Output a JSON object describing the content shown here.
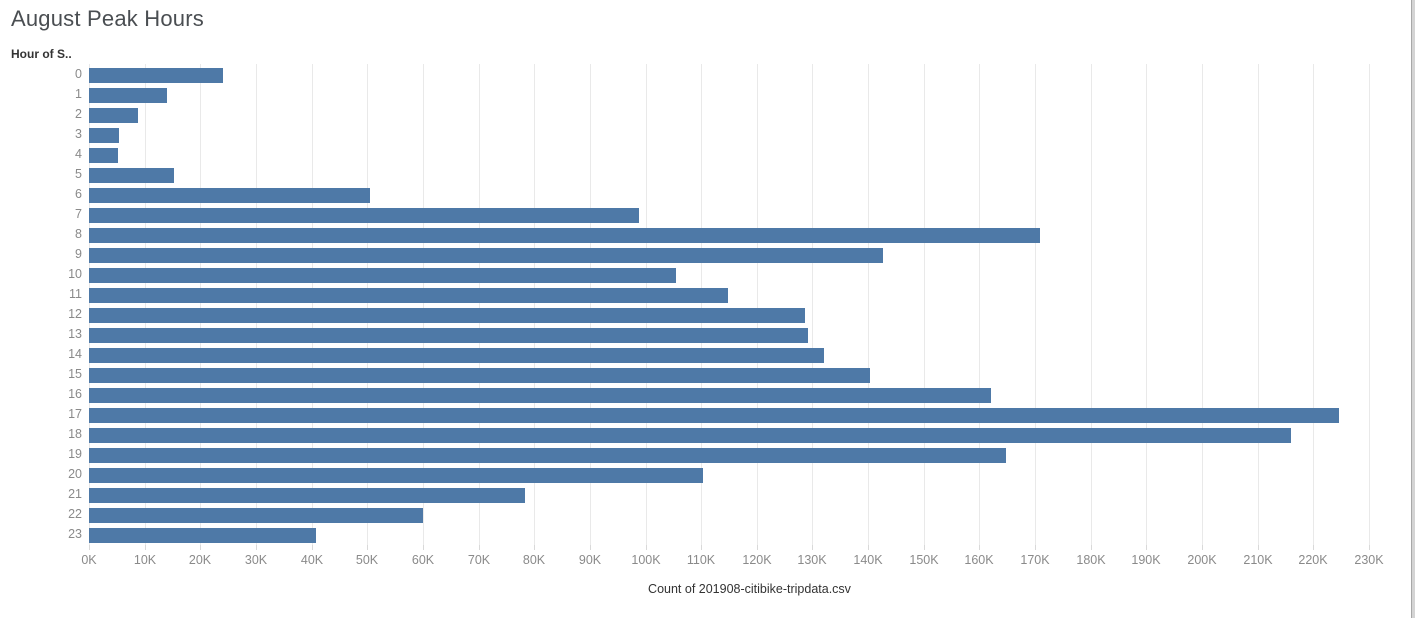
{
  "title": "August Peak Hours",
  "y_field_label": "Hour of S..",
  "colors": {
    "bar": "#4e79a7",
    "gridline": "#e9e9e9",
    "tick_text": "#8a8a8a",
    "title_text": "#4a4e52",
    "axis_title_text": "#333333"
  },
  "chart_data": {
    "type": "bar",
    "orientation": "horizontal",
    "title": "August Peak Hours",
    "xlabel": "Count of 201908-citibike-tripdata.csv",
    "ylabel": "Hour of S..",
    "categories": [
      "0",
      "1",
      "2",
      "3",
      "4",
      "5",
      "6",
      "7",
      "8",
      "9",
      "10",
      "11",
      "12",
      "13",
      "14",
      "15",
      "16",
      "17",
      "18",
      "19",
      "20",
      "21",
      "22",
      "23"
    ],
    "values": [
      24100,
      14000,
      8800,
      5400,
      5200,
      15300,
      50400,
      98800,
      170800,
      142600,
      105500,
      114900,
      128600,
      129200,
      132100,
      140300,
      162100,
      224600,
      216000,
      164800,
      110300,
      78300,
      60000,
      40700
    ],
    "xlim": [
      0,
      230000
    ],
    "x_tick_step": 10000,
    "x_tick_labels": [
      "0K",
      "10K",
      "20K",
      "30K",
      "40K",
      "50K",
      "60K",
      "70K",
      "80K",
      "90K",
      "100K",
      "110K",
      "120K",
      "130K",
      "140K",
      "150K",
      "160K",
      "170K",
      "180K",
      "190K",
      "200K",
      "210K",
      "220K",
      "230K"
    ],
    "grid": true,
    "legend": false
  }
}
